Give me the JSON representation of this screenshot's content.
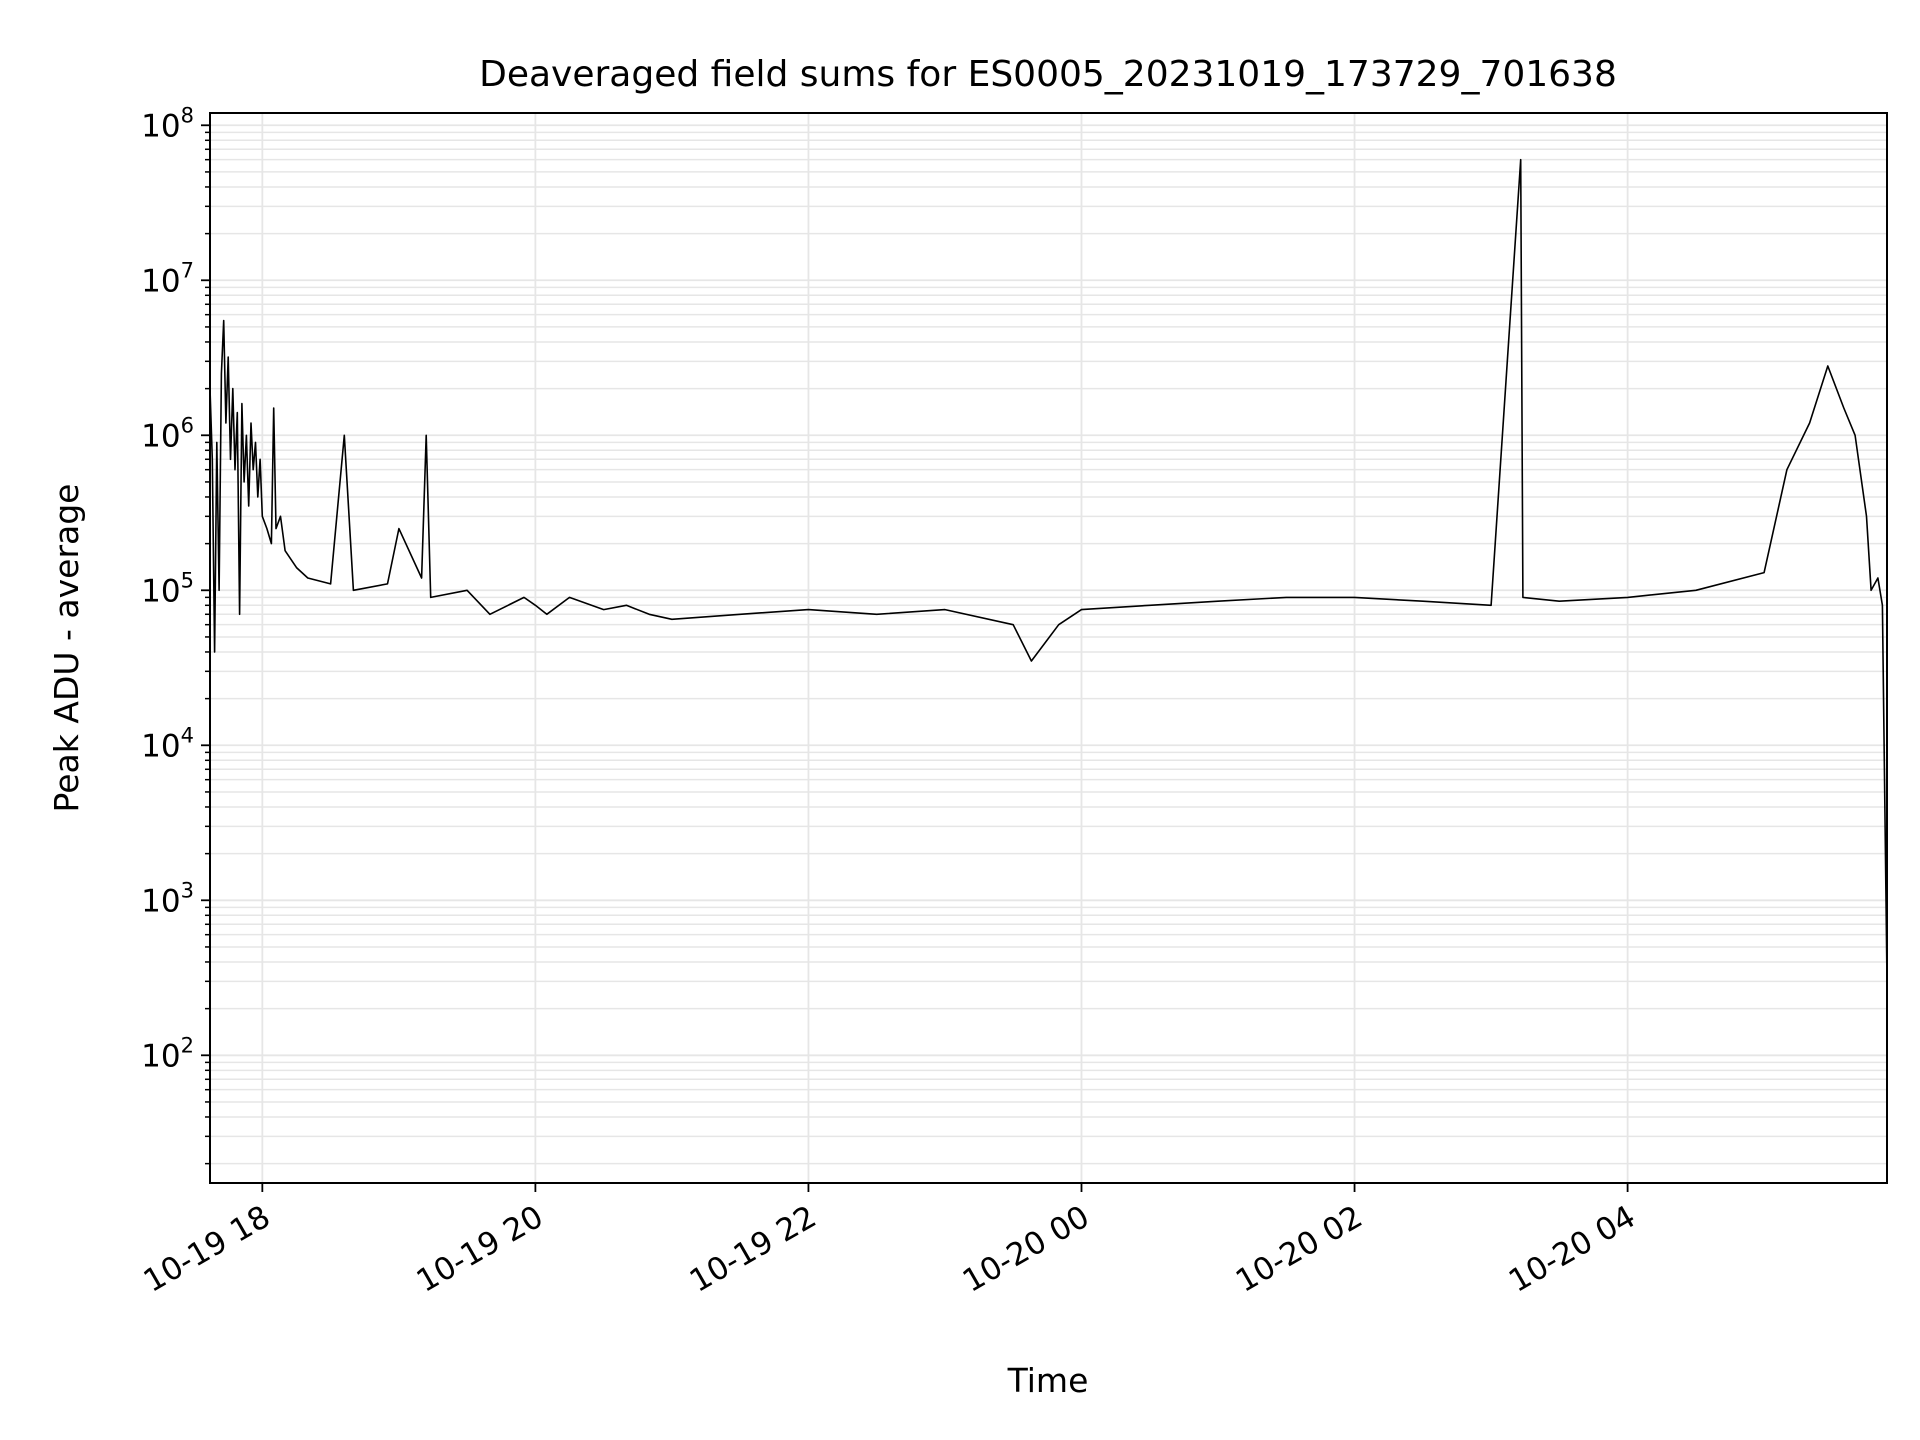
{
  "chart_data": {
    "type": "line",
    "title": "Deaveraged field sums for ES0005_20231019_173729_701638",
    "xlabel": "Time",
    "ylabel": "Peak ADU - average",
    "y_scale": "log",
    "ylim": [
      15,
      120000000
    ],
    "xlim": [
      "2023-10-19 17:37",
      "2023-10-20 05:54"
    ],
    "x_ticks": [
      {
        "t": "2023-10-19 18:00",
        "label": "10-19 18"
      },
      {
        "t": "2023-10-19 20:00",
        "label": "10-19 20"
      },
      {
        "t": "2023-10-19 22:00",
        "label": "10-19 22"
      },
      {
        "t": "2023-10-20 00:00",
        "label": "10-20 00"
      },
      {
        "t": "2023-10-20 02:00",
        "label": "10-20 02"
      },
      {
        "t": "2023-10-20 04:00",
        "label": "10-20 04"
      }
    ],
    "y_ticks": [
      {
        "value": 100,
        "base": "10",
        "exp": "2"
      },
      {
        "value": 1000,
        "base": "10",
        "exp": "3"
      },
      {
        "value": 10000,
        "base": "10",
        "exp": "4"
      },
      {
        "value": 100000,
        "base": "10",
        "exp": "5"
      },
      {
        "value": 1000000,
        "base": "10",
        "exp": "6"
      },
      {
        "value": 10000000,
        "base": "10",
        "exp": "7"
      },
      {
        "value": 100000000,
        "base": "10",
        "exp": "8"
      }
    ],
    "grid": true,
    "line_color": "#000000",
    "grid_color": "#e6e6e6",
    "series": [
      {
        "points": [
          [
            "2023-10-19 17:37",
            2000000
          ],
          [
            "2023-10-19 17:38",
            700000
          ],
          [
            "2023-10-19 17:39",
            40000
          ],
          [
            "2023-10-19 17:40",
            900000
          ],
          [
            "2023-10-19 17:41",
            100000
          ],
          [
            "2023-10-19 17:42",
            2500000
          ],
          [
            "2023-10-19 17:43",
            5500000
          ],
          [
            "2023-10-19 17:44",
            1200000
          ],
          [
            "2023-10-19 17:45",
            3200000
          ],
          [
            "2023-10-19 17:46",
            700000
          ],
          [
            "2023-10-19 17:47",
            2000000
          ],
          [
            "2023-10-19 17:48",
            600000
          ],
          [
            "2023-10-19 17:49",
            1400000
          ],
          [
            "2023-10-19 17:50",
            70000
          ],
          [
            "2023-10-19 17:51",
            1600000
          ],
          [
            "2023-10-19 17:52",
            500000
          ],
          [
            "2023-10-19 17:53",
            1000000
          ],
          [
            "2023-10-19 17:54",
            350000
          ],
          [
            "2023-10-19 17:55",
            1200000
          ],
          [
            "2023-10-19 17:56",
            600000
          ],
          [
            "2023-10-19 17:57",
            900000
          ],
          [
            "2023-10-19 17:58",
            400000
          ],
          [
            "2023-10-19 17:59",
            700000
          ],
          [
            "2023-10-19 18:00",
            300000
          ],
          [
            "2023-10-19 18:02",
            250000
          ],
          [
            "2023-10-19 18:04",
            200000
          ],
          [
            "2023-10-19 18:05",
            1500000
          ],
          [
            "2023-10-19 18:06",
            250000
          ],
          [
            "2023-10-19 18:08",
            300000
          ],
          [
            "2023-10-19 18:10",
            180000
          ],
          [
            "2023-10-19 18:15",
            140000
          ],
          [
            "2023-10-19 18:20",
            120000
          ],
          [
            "2023-10-19 18:30",
            110000
          ],
          [
            "2023-10-19 18:36",
            1000000
          ],
          [
            "2023-10-19 18:40",
            100000
          ],
          [
            "2023-10-19 18:55",
            110000
          ],
          [
            "2023-10-19 19:00",
            250000
          ],
          [
            "2023-10-19 19:10",
            120000
          ],
          [
            "2023-10-19 19:12",
            1000000
          ],
          [
            "2023-10-19 19:14",
            90000
          ],
          [
            "2023-10-19 19:30",
            100000
          ],
          [
            "2023-10-19 19:40",
            70000
          ],
          [
            "2023-10-19 19:55",
            90000
          ],
          [
            "2023-10-19 20:00",
            80000
          ],
          [
            "2023-10-19 20:05",
            70000
          ],
          [
            "2023-10-19 20:15",
            90000
          ],
          [
            "2023-10-19 20:30",
            75000
          ],
          [
            "2023-10-19 20:40",
            80000
          ],
          [
            "2023-10-19 20:50",
            70000
          ],
          [
            "2023-10-19 21:00",
            65000
          ],
          [
            "2023-10-19 21:30",
            70000
          ],
          [
            "2023-10-19 22:00",
            75000
          ],
          [
            "2023-10-19 22:30",
            70000
          ],
          [
            "2023-10-19 23:00",
            75000
          ],
          [
            "2023-10-19 23:30",
            60000
          ],
          [
            "2023-10-19 23:38",
            35000
          ],
          [
            "2023-10-19 23:50",
            60000
          ],
          [
            "2023-10-20 00:00",
            75000
          ],
          [
            "2023-10-20 00:30",
            80000
          ],
          [
            "2023-10-20 01:00",
            85000
          ],
          [
            "2023-10-20 01:30",
            90000
          ],
          [
            "2023-10-20 02:00",
            90000
          ],
          [
            "2023-10-20 02:30",
            85000
          ],
          [
            "2023-10-20 03:00",
            80000
          ],
          [
            "2023-10-20 03:13",
            60000000
          ],
          [
            "2023-10-20 03:14",
            90000
          ],
          [
            "2023-10-20 03:30",
            85000
          ],
          [
            "2023-10-20 04:00",
            90000
          ],
          [
            "2023-10-20 04:30",
            100000
          ],
          [
            "2023-10-20 05:00",
            130000
          ],
          [
            "2023-10-20 05:10",
            600000
          ],
          [
            "2023-10-20 05:20",
            1200000
          ],
          [
            "2023-10-20 05:28",
            2800000
          ],
          [
            "2023-10-20 05:35",
            1500000
          ],
          [
            "2023-10-20 05:40",
            1000000
          ],
          [
            "2023-10-20 05:45",
            300000
          ],
          [
            "2023-10-20 05:47",
            100000
          ],
          [
            "2023-10-20 05:50",
            120000
          ],
          [
            "2023-10-20 05:52",
            80000
          ],
          [
            "2023-10-20 05:54",
            300
          ]
        ]
      }
    ]
  }
}
